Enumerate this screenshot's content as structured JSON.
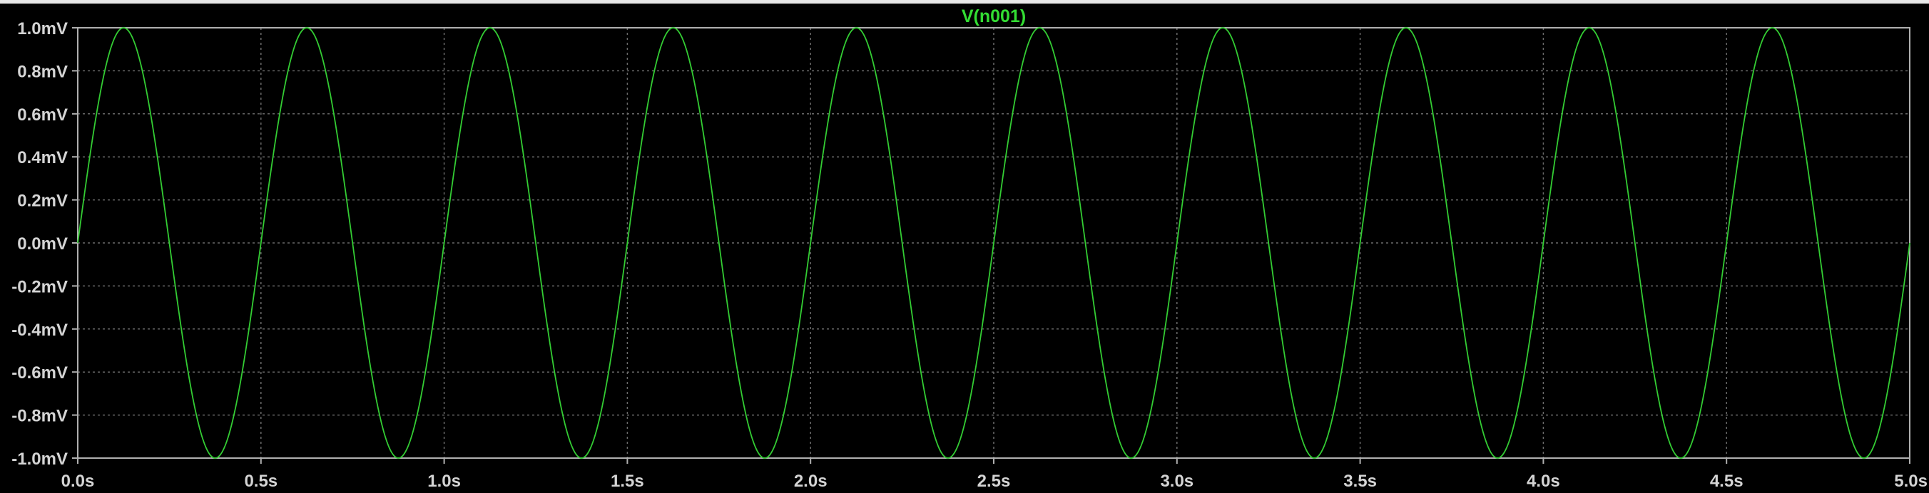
{
  "window": {
    "background": "#000000"
  },
  "chart_data": {
    "type": "line",
    "title": "V(n001)",
    "xlabel": "",
    "ylabel": "",
    "xlim": [
      0,
      5
    ],
    "ylim": [
      -1,
      1
    ],
    "x_unit": "s",
    "y_unit": "mV",
    "grid": true,
    "legend": "none",
    "trace_color": "#33cc33",
    "grid_color": "#6a6a6a",
    "axis_color": "#b0b0b0",
    "x_ticks": [
      "0.0s",
      "0.5s",
      "1.0s",
      "1.5s",
      "2.0s",
      "2.5s",
      "3.0s",
      "3.5s",
      "4.0s",
      "4.5s",
      "5.0s"
    ],
    "y_ticks": [
      "1.0mV",
      "0.8mV",
      "0.6mV",
      "0.4mV",
      "0.2mV",
      "0.0mV",
      "-0.2mV",
      "-0.4mV",
      "-0.6mV",
      "-0.8mV",
      "-1.0mV"
    ],
    "series": [
      {
        "name": "V(n001)",
        "function": "sine",
        "amplitude": 1.0,
        "frequency": 2.0,
        "phase": 0,
        "offset": 0
      }
    ]
  }
}
